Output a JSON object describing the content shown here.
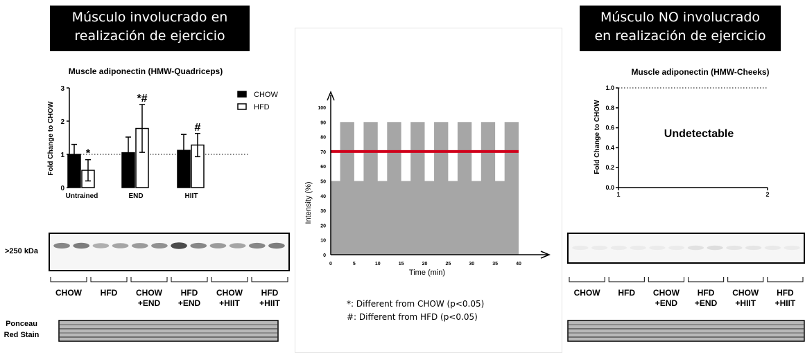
{
  "banners": {
    "left": [
      "Músculo involucrado en",
      "realización de ejercicio"
    ],
    "right": [
      "Músculo NO involucrado",
      "en realización de ejercicio"
    ]
  },
  "colors": {
    "chow": "#000000",
    "hfd": "#ffffff",
    "bar_area": "#a6a6a6",
    "mean_line": "#d0021b"
  },
  "chart_data": [
    {
      "type": "bar",
      "title": "Muscle adiponectin (HMW-Quadriceps)",
      "ylabel": "Fold Change to CHOW",
      "xlabel": "",
      "categories": [
        "Untrained",
        "END",
        "HIIT"
      ],
      "ylim": [
        0,
        3
      ],
      "yticks": [
        "0",
        "1",
        "2",
        "3"
      ],
      "reference_line": 1,
      "legend_position": "top-right",
      "series": [
        {
          "name": "CHOW",
          "values": [
            1.0,
            1.05,
            1.12
          ],
          "errors": [
            0.3,
            0.47,
            0.48
          ],
          "annotations": [
            "",
            "",
            ""
          ]
        },
        {
          "name": "HFD",
          "values": [
            0.52,
            1.78,
            1.28
          ],
          "errors": [
            0.32,
            0.72,
            0.35
          ],
          "annotations": [
            "*",
            "*#",
            "#"
          ]
        }
      ]
    },
    {
      "type": "area",
      "title": "",
      "xlabel": "Time (min)",
      "ylabel": "Intensity (%)",
      "xticks": [
        "0",
        "5",
        "10",
        "15",
        "20",
        "25",
        "30",
        "35",
        "40"
      ],
      "yticks": [
        "0",
        "10",
        "20",
        "30",
        "40",
        "50",
        "60",
        "70",
        "80",
        "90",
        "100"
      ],
      "xlim": [
        0,
        40
      ],
      "ylim": [
        0,
        100
      ],
      "baseline_intensity": 50,
      "peak_intensity": 90,
      "mean_line": 70,
      "intervals": [
        [
          2,
          5
        ],
        [
          7,
          10
        ],
        [
          12,
          15
        ],
        [
          17,
          20
        ],
        [
          22,
          25
        ],
        [
          27,
          30
        ],
        [
          32,
          35
        ],
        [
          37,
          40
        ]
      ]
    },
    {
      "type": "line",
      "title": "Muscle adiponectin (HMW-Cheeks)",
      "ylabel": "Fold Change to CHOW",
      "xlabel": "",
      "xticks": [
        "1",
        "2"
      ],
      "yticks": [
        "0.0",
        "0.2",
        "0.4",
        "0.6",
        "0.8",
        "1.0"
      ],
      "ylim": [
        0,
        1
      ],
      "reference_line": 1.0,
      "annotation": "Undetectable"
    }
  ],
  "blot": {
    "band_label": ">250 kDa",
    "stain_label": [
      "Ponceau",
      "Red Stain"
    ],
    "lanes_left": [
      [
        "CHOW"
      ],
      [
        "HFD"
      ],
      [
        "CHOW",
        "+END"
      ],
      [
        "HFD",
        "+END"
      ],
      [
        "CHOW",
        "+HIIT"
      ],
      [
        "HFD",
        "+HIIT"
      ]
    ],
    "lanes_right": [
      [
        "CHOW"
      ],
      [
        "HFD"
      ],
      [
        "CHOW",
        "+END"
      ],
      [
        "HFD",
        "+END"
      ],
      [
        "CHOW",
        "+HIIT"
      ],
      [
        "HFD",
        "+HIIT"
      ]
    ],
    "band_intensity_left": [
      0.55,
      0.6,
      0.35,
      0.4,
      0.45,
      0.5,
      0.85,
      0.55,
      0.45,
      0.4,
      0.55,
      0.6
    ],
    "band_intensity_right": [
      0.05,
      0.05,
      0.05,
      0.05,
      0.05,
      0.05,
      0.1,
      0.12,
      0.08,
      0.08,
      0.06,
      0.05
    ]
  },
  "notes": [
    "*: Different from CHOW (p<0.05)",
    "#: Different from HFD (p<0.05)"
  ]
}
